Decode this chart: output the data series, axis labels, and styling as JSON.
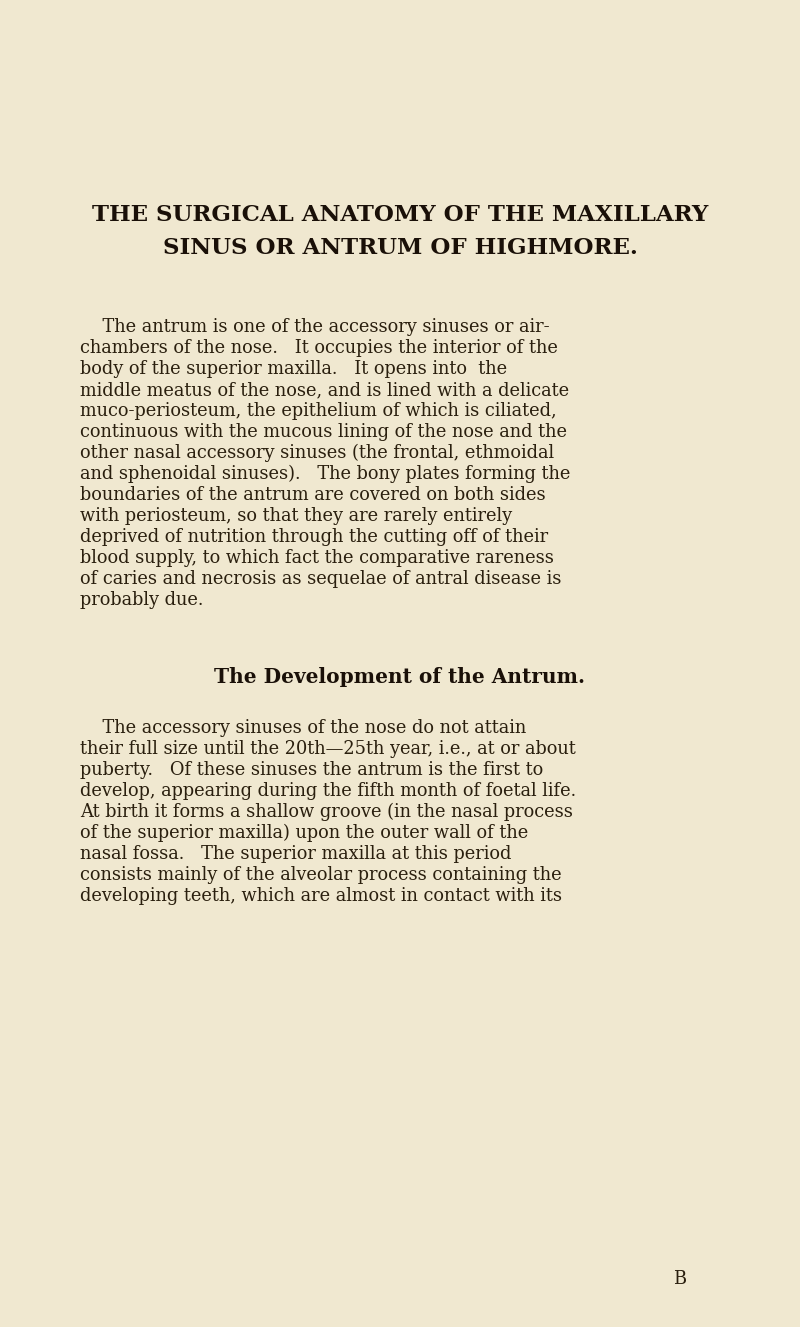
{
  "background_color": "#f0e8d0",
  "title_line1": "THE SURGICAL ANATOMY OF THE MAXILLARY",
  "title_line2": "SINUS OR ANTRUM OF HIGHMORE.",
  "title_color": "#1a1008",
  "title_fontsize": 16.5,
  "body_color": "#2a1f0e",
  "body_fontsize": 12.8,
  "subheading": "The Development of the Antrum.",
  "subheading_fontsize": 14.5,
  "paragraph1_lines": [
    "    The antrum is one of the accessory sinuses or air-",
    "chambers of the nose.   It occupies the interior of the",
    "body of the superior maxilla.   It opens into  the",
    "middle meatus of the nose, and is lined with a delicate",
    "muco-periosteum, the epithelium of which is ciliated,",
    "continuous with the mucous lining of the nose and the",
    "other nasal accessory sinuses (the frontal, ethmoidal",
    "and sphenoidal sinuses).   The bony plates forming the",
    "boundaries of the antrum are covered on both sides",
    "with periosteum, so that they are rarely entirely",
    "deprived of nutrition through the cutting off of their",
    "blood supply, to which fact the comparative rareness",
    "of caries and necrosis as sequelae of antral disease is",
    "probably due."
  ],
  "paragraph2_lines": [
    "    The accessory sinuses of the nose do not attain",
    "their full size until the 20th—25th year, i.e., at or about",
    "puberty.   Of these sinuses the antrum is the first to",
    "develop, appearing during the fifth month of foetal life.",
    "At birth it forms a shallow groove (in the nasal process",
    "of the superior maxilla) upon the outer wall of the",
    "nasal fossa.   The superior maxilla at this period",
    "consists mainly of the alveolar process containing the",
    "developing teeth, which are almost in contact with its"
  ],
  "footer": "B"
}
